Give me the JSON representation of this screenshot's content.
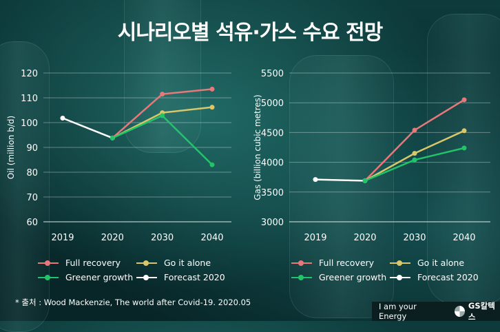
{
  "title": "시나리오별 석유·가스 수요 전망",
  "colors": {
    "full_recovery": "#e8787a",
    "go_it_alone": "#d9c76a",
    "greener_growth": "#22c46a",
    "forecast_2020": "#ffffff"
  },
  "legend": {
    "full_recovery": "Full recovery",
    "go_it_alone": "Go it alone",
    "greener_growth": "Greener growth",
    "forecast_2020": "Forecast 2020"
  },
  "source": "* 출처 : Wood Mackenzie, The world after Covid-19. 2020.05",
  "brand": {
    "slogan": "I am your Energy",
    "name": "GS칼텍스",
    "logo_icon": "gs-logo-icon"
  },
  "chart_data": [
    {
      "type": "line",
      "ylabel": "Oil (million b/d)",
      "categories": [
        "2019",
        "2020",
        "2030",
        "2040"
      ],
      "yticks": [
        60,
        70,
        80,
        90,
        100,
        110,
        120
      ],
      "ylim": [
        60,
        120
      ],
      "series": [
        {
          "name": "Forecast 2020",
          "key": "forecast_2020",
          "values": [
            101.8,
            93.8,
            null,
            null
          ]
        },
        {
          "name": "Full recovery",
          "key": "full_recovery",
          "values": [
            null,
            93.8,
            111.5,
            113.5
          ]
        },
        {
          "name": "Go it alone",
          "key": "go_it_alone",
          "values": [
            null,
            93.8,
            104,
            106.2
          ]
        },
        {
          "name": "Greener growth",
          "key": "greener_growth",
          "values": [
            null,
            93.8,
            102.8,
            83
          ]
        }
      ]
    },
    {
      "type": "line",
      "ylabel": "Gas (billion cubic metres)",
      "categories": [
        "2019",
        "2020",
        "2030",
        "2040"
      ],
      "yticks": [
        3000,
        3500,
        4000,
        4500,
        5000,
        5500
      ],
      "ylim": [
        3000,
        5500
      ],
      "series": [
        {
          "name": "Forecast 2020",
          "key": "forecast_2020",
          "values": [
            3710,
            3690,
            null,
            null
          ]
        },
        {
          "name": "Full recovery",
          "key": "full_recovery",
          "values": [
            null,
            3690,
            4540,
            5050
          ]
        },
        {
          "name": "Go it alone",
          "key": "go_it_alone",
          "values": [
            null,
            3690,
            4150,
            4530
          ]
        },
        {
          "name": "Greener growth",
          "key": "greener_growth",
          "values": [
            null,
            3690,
            4040,
            4240
          ]
        }
      ]
    }
  ]
}
